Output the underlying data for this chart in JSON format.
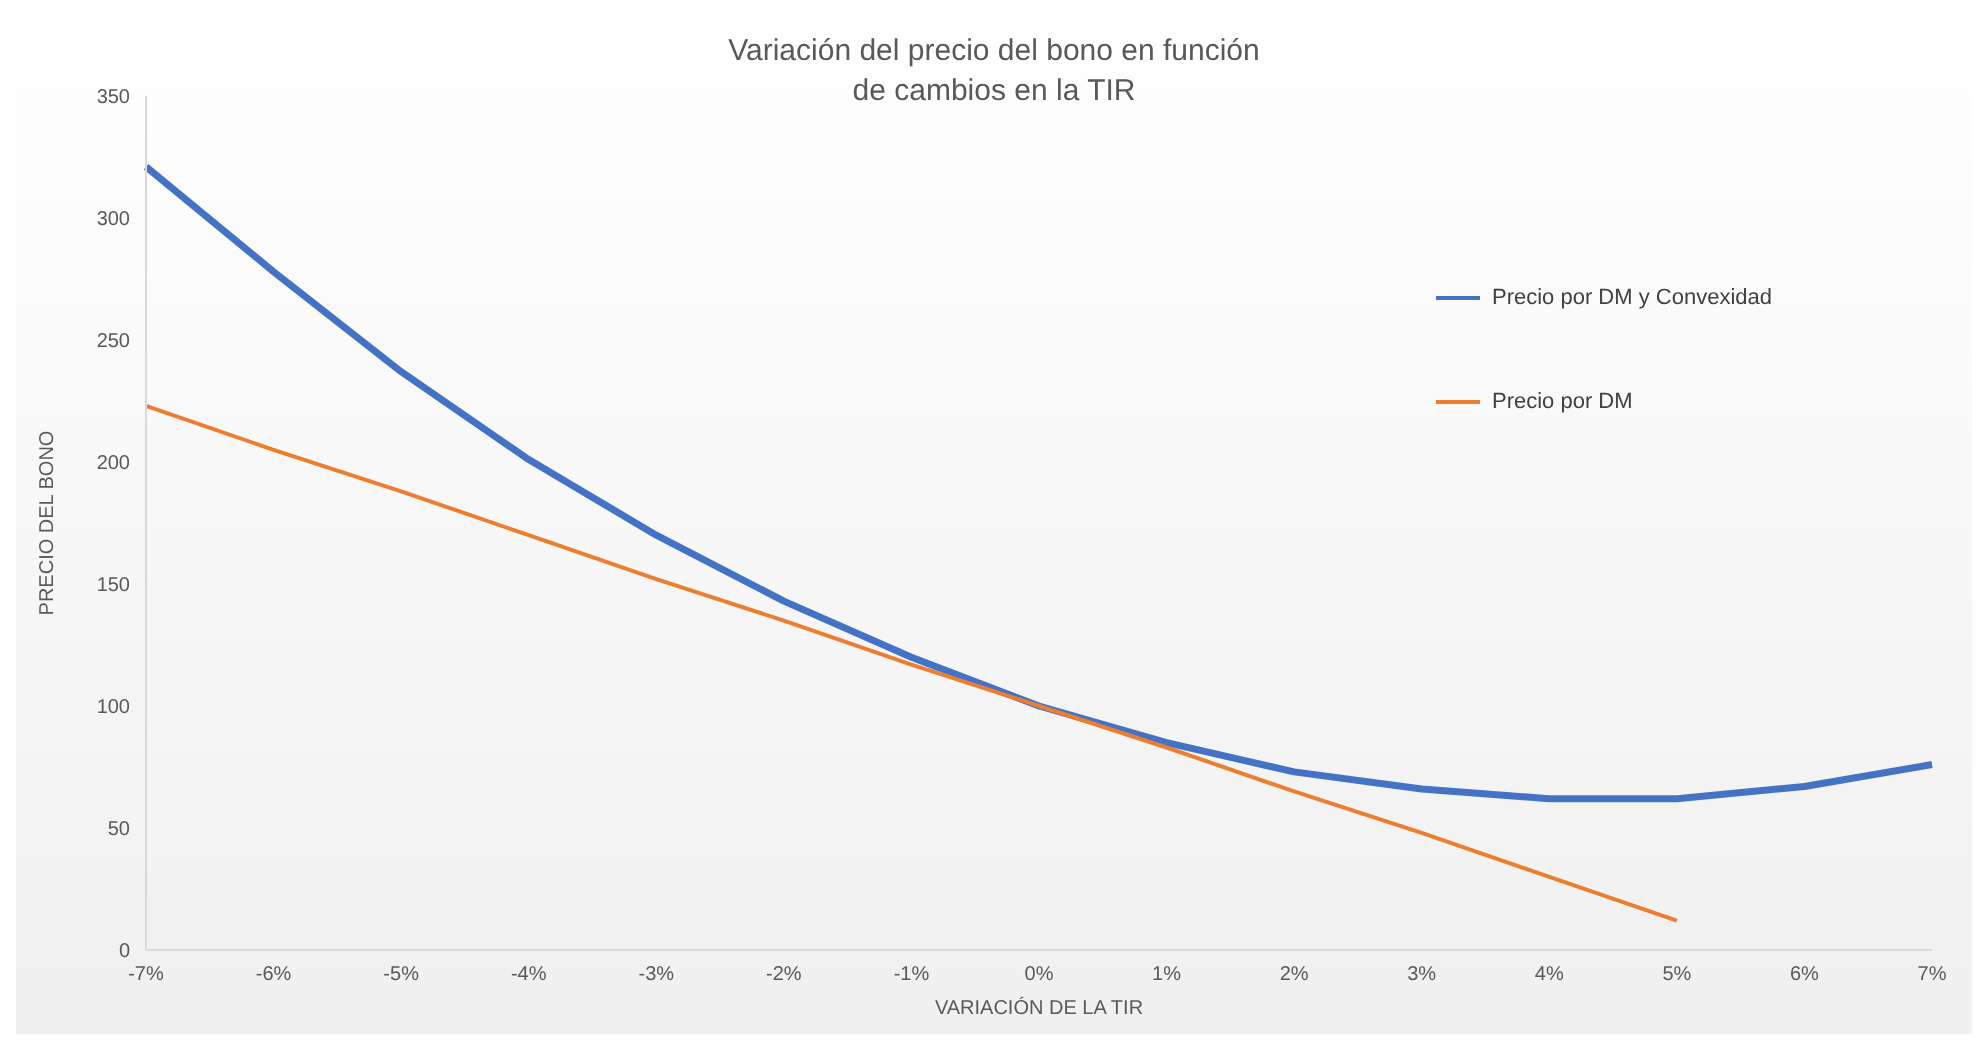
{
  "chart_data": {
    "type": "line",
    "title": "Variación del precio del bono en función de cambios en la TIR",
    "xlabel": "VARIACIÓN DE LA TIR",
    "ylabel": "PRECIO DEL BONO",
    "categories": [
      "-7%",
      "-6%",
      "-5%",
      "-4%",
      "-3%",
      "-2%",
      "-1%",
      "0%",
      "1%",
      "2%",
      "3%",
      "4%",
      "5%",
      "6%",
      "7%"
    ],
    "series": [
      {
        "name": "Precio por DM y Convexidad",
        "color": "#4472c4",
        "values": [
          321,
          278,
          237,
          201,
          170,
          143,
          120,
          100,
          85,
          73,
          66,
          62,
          62,
          67,
          76
        ]
      },
      {
        "name": "Precio por DM",
        "color": "#ed7d31",
        "values": [
          223,
          205,
          188,
          170,
          152,
          135,
          117,
          100,
          83,
          65,
          48,
          30,
          12,
          null,
          null
        ]
      }
    ],
    "ylim": [
      0,
      350
    ],
    "yticks": [
      0,
      50,
      100,
      150,
      200,
      250,
      300,
      350
    ],
    "grid": false,
    "legend": "top right",
    "marker": "none",
    "line_style": "solid"
  }
}
